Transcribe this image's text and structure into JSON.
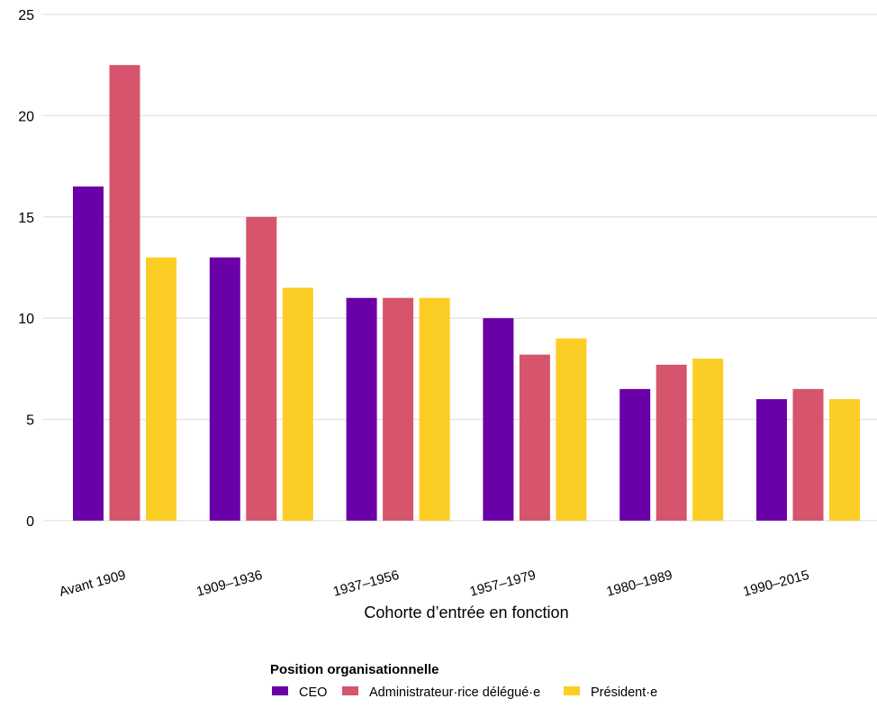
{
  "chart_data": {
    "type": "bar",
    "title": "",
    "xlabel": "Cohorte d’entrée en fonction",
    "ylabel": "",
    "ylim": [
      0,
      25
    ],
    "yticks": [
      0,
      5,
      10,
      15,
      20,
      25
    ],
    "grid": true,
    "categories": [
      "Avant 1909",
      "1909–1936",
      "1937–1956",
      "1957–1979",
      "1980–1989",
      "1990–2015"
    ],
    "series": [
      {
        "name": "CEO",
        "color": "#6a00a8",
        "values": [
          16.5,
          13,
          11,
          10,
          6.5,
          6
        ]
      },
      {
        "name": "Administrateur·rice délégué·e",
        "color": "#d6556d",
        "values": [
          22.5,
          15,
          11,
          8.2,
          7.7,
          6.5
        ]
      },
      {
        "name": "Président·e",
        "color": "#fccd25",
        "values": [
          13,
          11.5,
          11,
          9,
          8,
          6
        ]
      }
    ],
    "legend": {
      "title": "Position organisationnelle",
      "placement": "bottom"
    }
  }
}
